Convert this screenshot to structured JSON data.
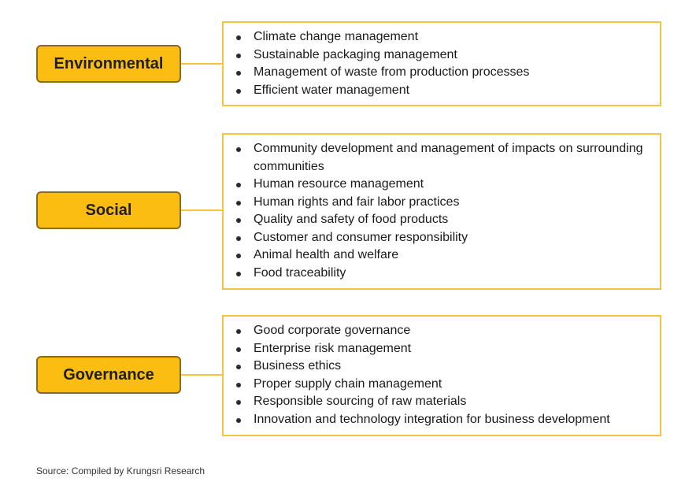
{
  "categories": [
    {
      "label": "Environmental",
      "items": [
        "Climate change management",
        "Sustainable packaging management",
        "Management of waste from production processes",
        "Efficient water management"
      ]
    },
    {
      "label": "Social",
      "items": [
        "Community development and management of impacts on surrounding communities",
        "Human resource management",
        "Human rights and fair labor practices",
        "Quality and safety of food products",
        "Customer and consumer responsibility",
        "Animal health and welfare",
        "Food traceability"
      ]
    },
    {
      "label": "Governance",
      "items": [
        "Good corporate governance",
        "Enterprise risk management",
        "Business ethics",
        "Proper supply chain management",
        "Responsible sourcing of raw materials",
        "Innovation and technology integration for business development"
      ]
    }
  ],
  "source": "Source: Compiled by Krungsri Research",
  "colors": {
    "pill_fill": "#fbbd12",
    "pill_border": "#8a6a1c",
    "box_border": "#f5c542"
  }
}
